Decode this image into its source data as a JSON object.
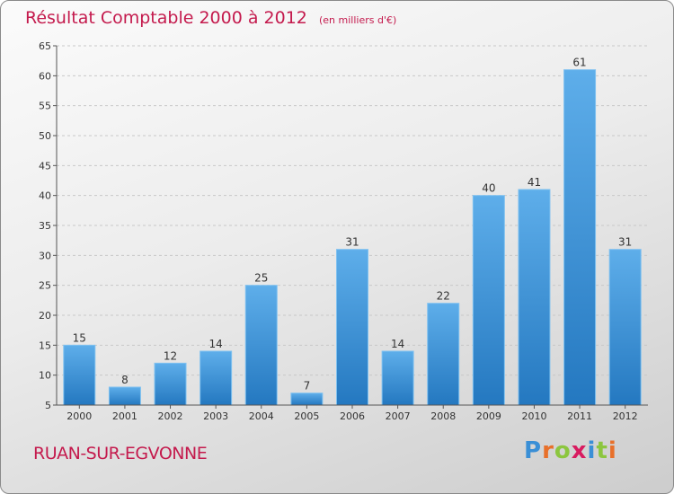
{
  "header": {
    "title": "Résultat Comptable 2000 à 2012",
    "unit": "(en milliers d'€)"
  },
  "footer": {
    "commune": "RUAN-SUR-EGVONNE",
    "logo": [
      "P",
      "r",
      "o",
      "x",
      "i",
      "t",
      "i"
    ]
  },
  "colors": {
    "title": "#c41a4d",
    "bar_light": "#5eaeea",
    "bar_dark": "#2478c0",
    "logo_letters": [
      "#3a8fd6",
      "#e8702a",
      "#8cc63f",
      "#d81b60",
      "#3a8fd6",
      "#8cc63f",
      "#e8702a"
    ]
  },
  "chart_data": {
    "type": "bar",
    "title": "Résultat Comptable 2000 à 2012",
    "subtitle": "(en milliers d'€)",
    "xlabel": "",
    "ylabel": "",
    "categories": [
      "2000",
      "2001",
      "2002",
      "2003",
      "2004",
      "2005",
      "2006",
      "2007",
      "2008",
      "2009",
      "2010",
      "2011",
      "2012"
    ],
    "values": [
      15,
      8,
      12,
      14,
      25,
      7,
      31,
      14,
      22,
      40,
      41,
      61,
      31
    ],
    "ylim": [
      5,
      65
    ],
    "yticks": [
      5,
      10,
      15,
      20,
      25,
      30,
      35,
      40,
      45,
      50,
      55,
      60,
      65
    ],
    "grid": true
  }
}
